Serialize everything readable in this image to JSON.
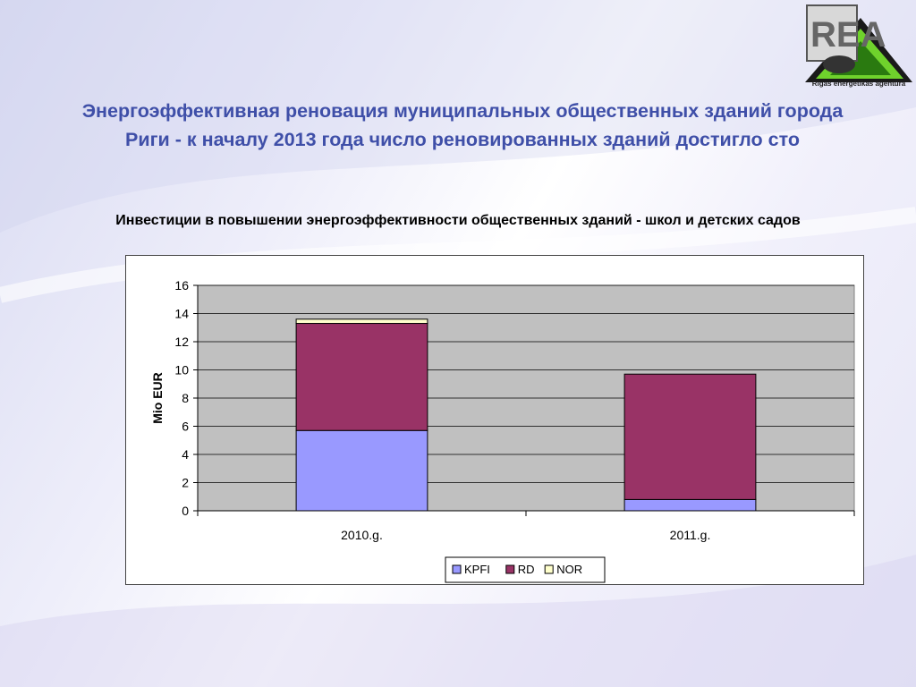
{
  "slide": {
    "title_line1": "Энергоэффективная реновация муниципальных общественных зданий города",
    "title_line2": "Риги -  к началу 2013 года число реновированных зданий достигло сто",
    "subtitle": "Инвестиции в повышении энергоэффективности общественных зданий - школ и детских садов",
    "logo_caption": "Rīgas enerģētikas aģentūra",
    "colors": {
      "title": "#3f4fa8"
    }
  },
  "chart_data": {
    "type": "bar",
    "stacked": true,
    "categories": [
      "2010.g.",
      "2011.g."
    ],
    "series": [
      {
        "name": "KPFI",
        "values": [
          5.7,
          0.8
        ],
        "color": "#9999ff"
      },
      {
        "name": "RD",
        "values": [
          7.6,
          8.9
        ],
        "color": "#993366"
      },
      {
        "name": "NOR",
        "values": [
          0.3,
          0.0
        ],
        "color": "#ffffcc"
      }
    ],
    "ylabel": "Mio EUR",
    "ylim": [
      0,
      16
    ],
    "yticks": [
      0,
      2,
      4,
      6,
      8,
      10,
      12,
      14,
      16
    ],
    "grid": true,
    "legend": "bottom"
  }
}
